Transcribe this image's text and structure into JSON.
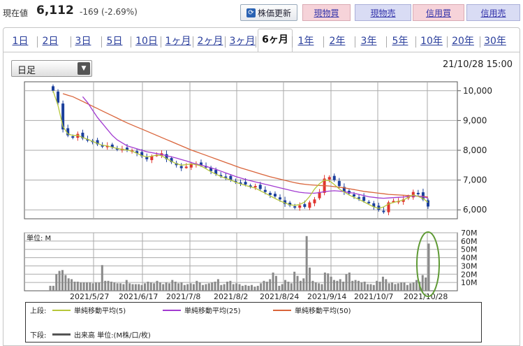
{
  "header": {
    "price_label": "現在値",
    "price_value": "6,112",
    "price_change": "-169 (-2.69%)",
    "refresh_label": "株価更新",
    "buy_label": "現物買",
    "sell_label": "現物売",
    "margin_buy_label": "信用買",
    "margin_sell_label": "信用売"
  },
  "tabs": [
    "1日",
    "2日",
    "3日",
    "5日",
    "10日",
    "1ヶ月",
    "2ヶ月",
    "3ヶ月",
    "6ヶ月",
    "1年",
    "2年",
    "3年",
    "5年",
    "10年",
    "20年",
    "30年"
  ],
  "active_tab": "6ヶ月",
  "interval_select": "日足",
  "timestamp": "21/10/28 15:00",
  "colors": {
    "ma5": "#b6c73a",
    "ma25": "#a23bd1",
    "ma50": "#d9643a",
    "candle_up": "#e0342e",
    "candle_down": "#1b3f9c",
    "volume": "#8a8a8a",
    "highlight": "#5f9a35"
  },
  "chart_data": [
    {
      "type": "candlestick",
      "title": "",
      "ylim": [
        5700,
        10300
      ],
      "yticks": [
        "10,000",
        "9,000",
        "8,000",
        "7,000",
        "6,000"
      ],
      "ytick_values": [
        10000,
        9000,
        8000,
        7000,
        6000
      ],
      "close_points": [
        10000,
        9600,
        8700,
        8500,
        8450,
        8550,
        8400,
        8350,
        8300,
        8200,
        8150,
        8150,
        8100,
        8050,
        8050,
        8000,
        8000,
        7900,
        7800,
        7700,
        7800,
        7850,
        7900,
        7700,
        7600,
        7500,
        7400,
        7450,
        7550,
        7550,
        7500,
        7450,
        7300,
        7200,
        7150,
        7100,
        7000,
        6950,
        6900,
        6850,
        6800,
        6800,
        6700,
        6600,
        6500,
        6450,
        6350,
        6200,
        6150,
        6100,
        6150,
        6100,
        6250,
        6350,
        6600,
        7050,
        7100,
        7000,
        6800,
        6600,
        6550,
        6450,
        6400,
        6300,
        6250,
        6100,
        6000,
        5950,
        6250,
        6300,
        6300,
        6350,
        6450,
        6600,
        6550,
        6350,
        6112
      ],
      "ma5": [
        10000,
        9500,
        8800,
        8550,
        8500,
        8500,
        8430,
        8370,
        8300,
        8230,
        8170,
        8150,
        8100,
        8060,
        8030,
        8010,
        7970,
        7900,
        7820,
        7780,
        7800,
        7840,
        7820,
        7720,
        7630,
        7550,
        7500,
        7520,
        7540,
        7520,
        7470,
        7380,
        7280,
        7200,
        7120,
        7060,
        7000,
        6930,
        6870,
        6820,
        6770,
        6730,
        6640,
        6560,
        6470,
        6380,
        6300,
        6230,
        6170,
        6150,
        6180,
        6260,
        6450,
        6700,
        6880,
        7000,
        6980,
        6850,
        6700,
        6600,
        6500,
        6420,
        6350,
        6270,
        6180,
        6100,
        6050,
        6100,
        6200,
        6250,
        6290,
        6330,
        6420,
        6500,
        6450,
        6380,
        6250
      ],
      "ma25": [
        null,
        null,
        null,
        null,
        null,
        null,
        9800,
        9600,
        9350,
        9100,
        8900,
        8700,
        8500,
        8350,
        8250,
        8150,
        8100,
        8050,
        8000,
        7950,
        7920,
        7890,
        7860,
        7820,
        7780,
        7740,
        7690,
        7640,
        7590,
        7540,
        7500,
        7460,
        7410,
        7360,
        7300,
        7240,
        7180,
        7120,
        7070,
        7020,
        6980,
        6940,
        6900,
        6860,
        6820,
        6780,
        6740,
        6700,
        6660,
        6620,
        6590,
        6570,
        6560,
        6560,
        6580,
        6610,
        6630,
        6640,
        6630,
        6610,
        6580,
        6560,
        6520,
        6480,
        6440,
        6420,
        6400,
        6390,
        6400,
        6410,
        6420,
        6430,
        6450,
        6460,
        6460,
        6440,
        6400
      ],
      "ma50": [
        null,
        null,
        9900,
        9850,
        9800,
        9720,
        9640,
        9560,
        9480,
        9400,
        9320,
        9240,
        9160,
        9080,
        9000,
        8920,
        8850,
        8780,
        8710,
        8640,
        8570,
        8500,
        8430,
        8360,
        8290,
        8220,
        8150,
        8080,
        8010,
        7950,
        7890,
        7830,
        7770,
        7710,
        7650,
        7590,
        7530,
        7470,
        7410,
        7360,
        7310,
        7260,
        7210,
        7160,
        7110,
        7070,
        7030,
        6990,
        6950,
        6910,
        6880,
        6860,
        6840,
        6830,
        6820,
        6810,
        6800,
        6780,
        6760,
        6740,
        6710,
        6680,
        6650,
        6620,
        6600,
        6580,
        6560,
        6540,
        6520,
        6510,
        6500,
        6490,
        6480,
        6470,
        6460,
        6450,
        6430
      ]
    },
    {
      "type": "bar",
      "title": "",
      "unit_label": "単位: M",
      "ylim": [
        0,
        70
      ],
      "yticks": [
        "70M",
        "60M",
        "50M",
        "40M",
        "30M",
        "20M",
        "10M"
      ],
      "ytick_values": [
        70,
        60,
        50,
        40,
        30,
        20,
        10
      ],
      "xticks": [
        "2021/5/27",
        "2021/6/17",
        "2021/7/8",
        "2021/8/2",
        "2021/8/24",
        "2021/9/14",
        "2021/10/7",
        "2021/10/28"
      ],
      "values": [
        6,
        6,
        20,
        24,
        25,
        19,
        15,
        14,
        11,
        11,
        10,
        10,
        10,
        10,
        9,
        10,
        10,
        31,
        12,
        12,
        11,
        10,
        9,
        9,
        8,
        13,
        9,
        8,
        8,
        8,
        7,
        9,
        11,
        10,
        9,
        12,
        10,
        8,
        10,
        9,
        13,
        11,
        9,
        10,
        7,
        8,
        9,
        8,
        12,
        10,
        7,
        8,
        9,
        10,
        11,
        14,
        7,
        8,
        11,
        12,
        8,
        9,
        8,
        6,
        7,
        6,
        7,
        5,
        6,
        9,
        12,
        11,
        14,
        22,
        18,
        6,
        8,
        13,
        11,
        9,
        23,
        18,
        12,
        15,
        66,
        28,
        12,
        10,
        9,
        8,
        22,
        21,
        17,
        13,
        12,
        14,
        11,
        20,
        22,
        12,
        13,
        12,
        10,
        11,
        8,
        8,
        7,
        12,
        11,
        17,
        14,
        9,
        10,
        8,
        9,
        10,
        10,
        7,
        9,
        10,
        13,
        11,
        19,
        16,
        57
      ]
    }
  ],
  "legend": {
    "upper_label": "上段:",
    "lower_label": "下段:",
    "ma5_label": "単純移動平均(5)",
    "ma25_label": "単純移動平均(25)",
    "ma50_label": "単純移動平均(50)",
    "volume_label": "出来高 単位:(M株/口/枚)"
  }
}
